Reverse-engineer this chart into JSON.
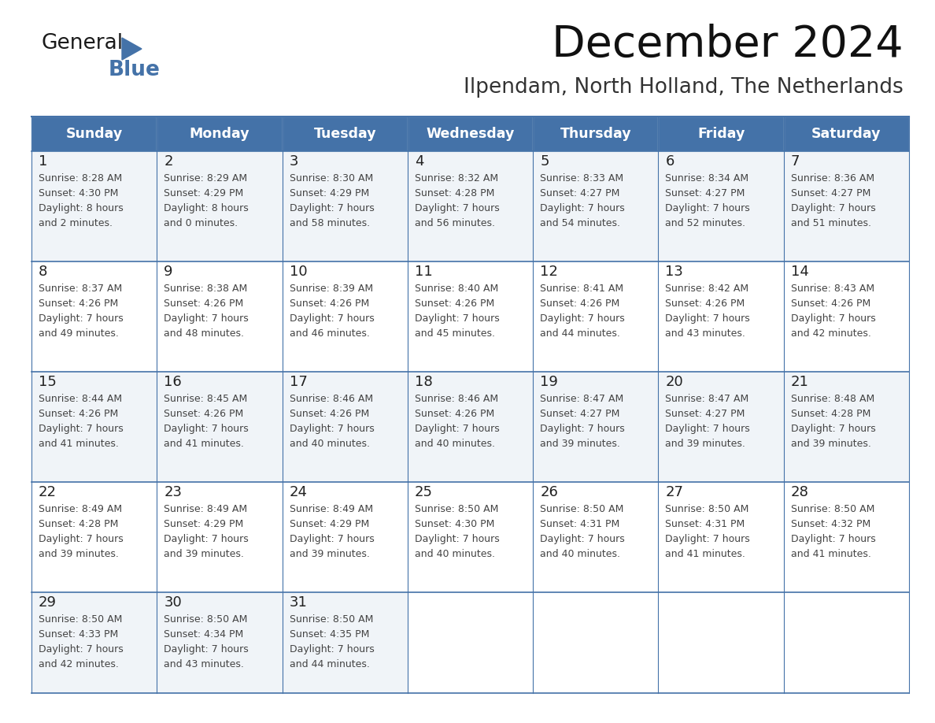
{
  "title": "December 2024",
  "subtitle": "Ilpendam, North Holland, The Netherlands",
  "days_of_week": [
    "Sunday",
    "Monday",
    "Tuesday",
    "Wednesday",
    "Thursday",
    "Friday",
    "Saturday"
  ],
  "header_bg": "#4472A8",
  "header_text": "#FFFFFF",
  "row_bg_odd": "#F0F4F8",
  "row_bg_even": "#FFFFFF",
  "cell_border": "#4472A8",
  "day_num_color": "#222222",
  "text_color": "#444444",
  "calendar_data": [
    [
      {
        "day": 1,
        "sunrise": "8:28 AM",
        "sunset": "4:30 PM",
        "daylight_l1": "Daylight: 8 hours",
        "daylight_l2": "and 2 minutes."
      },
      {
        "day": 2,
        "sunrise": "8:29 AM",
        "sunset": "4:29 PM",
        "daylight_l1": "Daylight: 8 hours",
        "daylight_l2": "and 0 minutes."
      },
      {
        "day": 3,
        "sunrise": "8:30 AM",
        "sunset": "4:29 PM",
        "daylight_l1": "Daylight: 7 hours",
        "daylight_l2": "and 58 minutes."
      },
      {
        "day": 4,
        "sunrise": "8:32 AM",
        "sunset": "4:28 PM",
        "daylight_l1": "Daylight: 7 hours",
        "daylight_l2": "and 56 minutes."
      },
      {
        "day": 5,
        "sunrise": "8:33 AM",
        "sunset": "4:27 PM",
        "daylight_l1": "Daylight: 7 hours",
        "daylight_l2": "and 54 minutes."
      },
      {
        "day": 6,
        "sunrise": "8:34 AM",
        "sunset": "4:27 PM",
        "daylight_l1": "Daylight: 7 hours",
        "daylight_l2": "and 52 minutes."
      },
      {
        "day": 7,
        "sunrise": "8:36 AM",
        "sunset": "4:27 PM",
        "daylight_l1": "Daylight: 7 hours",
        "daylight_l2": "and 51 minutes."
      }
    ],
    [
      {
        "day": 8,
        "sunrise": "8:37 AM",
        "sunset": "4:26 PM",
        "daylight_l1": "Daylight: 7 hours",
        "daylight_l2": "and 49 minutes."
      },
      {
        "day": 9,
        "sunrise": "8:38 AM",
        "sunset": "4:26 PM",
        "daylight_l1": "Daylight: 7 hours",
        "daylight_l2": "and 48 minutes."
      },
      {
        "day": 10,
        "sunrise": "8:39 AM",
        "sunset": "4:26 PM",
        "daylight_l1": "Daylight: 7 hours",
        "daylight_l2": "and 46 minutes."
      },
      {
        "day": 11,
        "sunrise": "8:40 AM",
        "sunset": "4:26 PM",
        "daylight_l1": "Daylight: 7 hours",
        "daylight_l2": "and 45 minutes."
      },
      {
        "day": 12,
        "sunrise": "8:41 AM",
        "sunset": "4:26 PM",
        "daylight_l1": "Daylight: 7 hours",
        "daylight_l2": "and 44 minutes."
      },
      {
        "day": 13,
        "sunrise": "8:42 AM",
        "sunset": "4:26 PM",
        "daylight_l1": "Daylight: 7 hours",
        "daylight_l2": "and 43 minutes."
      },
      {
        "day": 14,
        "sunrise": "8:43 AM",
        "sunset": "4:26 PM",
        "daylight_l1": "Daylight: 7 hours",
        "daylight_l2": "and 42 minutes."
      }
    ],
    [
      {
        "day": 15,
        "sunrise": "8:44 AM",
        "sunset": "4:26 PM",
        "daylight_l1": "Daylight: 7 hours",
        "daylight_l2": "and 41 minutes."
      },
      {
        "day": 16,
        "sunrise": "8:45 AM",
        "sunset": "4:26 PM",
        "daylight_l1": "Daylight: 7 hours",
        "daylight_l2": "and 41 minutes."
      },
      {
        "day": 17,
        "sunrise": "8:46 AM",
        "sunset": "4:26 PM",
        "daylight_l1": "Daylight: 7 hours",
        "daylight_l2": "and 40 minutes."
      },
      {
        "day": 18,
        "sunrise": "8:46 AM",
        "sunset": "4:26 PM",
        "daylight_l1": "Daylight: 7 hours",
        "daylight_l2": "and 40 minutes."
      },
      {
        "day": 19,
        "sunrise": "8:47 AM",
        "sunset": "4:27 PM",
        "daylight_l1": "Daylight: 7 hours",
        "daylight_l2": "and 39 minutes."
      },
      {
        "day": 20,
        "sunrise": "8:47 AM",
        "sunset": "4:27 PM",
        "daylight_l1": "Daylight: 7 hours",
        "daylight_l2": "and 39 minutes."
      },
      {
        "day": 21,
        "sunrise": "8:48 AM",
        "sunset": "4:28 PM",
        "daylight_l1": "Daylight: 7 hours",
        "daylight_l2": "and 39 minutes."
      }
    ],
    [
      {
        "day": 22,
        "sunrise": "8:49 AM",
        "sunset": "4:28 PM",
        "daylight_l1": "Daylight: 7 hours",
        "daylight_l2": "and 39 minutes."
      },
      {
        "day": 23,
        "sunrise": "8:49 AM",
        "sunset": "4:29 PM",
        "daylight_l1": "Daylight: 7 hours",
        "daylight_l2": "and 39 minutes."
      },
      {
        "day": 24,
        "sunrise": "8:49 AM",
        "sunset": "4:29 PM",
        "daylight_l1": "Daylight: 7 hours",
        "daylight_l2": "and 39 minutes."
      },
      {
        "day": 25,
        "sunrise": "8:50 AM",
        "sunset": "4:30 PM",
        "daylight_l1": "Daylight: 7 hours",
        "daylight_l2": "and 40 minutes."
      },
      {
        "day": 26,
        "sunrise": "8:50 AM",
        "sunset": "4:31 PM",
        "daylight_l1": "Daylight: 7 hours",
        "daylight_l2": "and 40 minutes."
      },
      {
        "day": 27,
        "sunrise": "8:50 AM",
        "sunset": "4:31 PM",
        "daylight_l1": "Daylight: 7 hours",
        "daylight_l2": "and 41 minutes."
      },
      {
        "day": 28,
        "sunrise": "8:50 AM",
        "sunset": "4:32 PM",
        "daylight_l1": "Daylight: 7 hours",
        "daylight_l2": "and 41 minutes."
      }
    ],
    [
      {
        "day": 29,
        "sunrise": "8:50 AM",
        "sunset": "4:33 PM",
        "daylight_l1": "Daylight: 7 hours",
        "daylight_l2": "and 42 minutes."
      },
      {
        "day": 30,
        "sunrise": "8:50 AM",
        "sunset": "4:34 PM",
        "daylight_l1": "Daylight: 7 hours",
        "daylight_l2": "and 43 minutes."
      },
      {
        "day": 31,
        "sunrise": "8:50 AM",
        "sunset": "4:35 PM",
        "daylight_l1": "Daylight: 7 hours",
        "daylight_l2": "and 44 minutes."
      },
      null,
      null,
      null,
      null
    ]
  ],
  "logo_general_color": "#1a1a1a",
  "logo_blue_color": "#4472A8",
  "logo_triangle_color": "#4472A8",
  "figsize": [
    11.88,
    9.18
  ],
  "dpi": 100
}
